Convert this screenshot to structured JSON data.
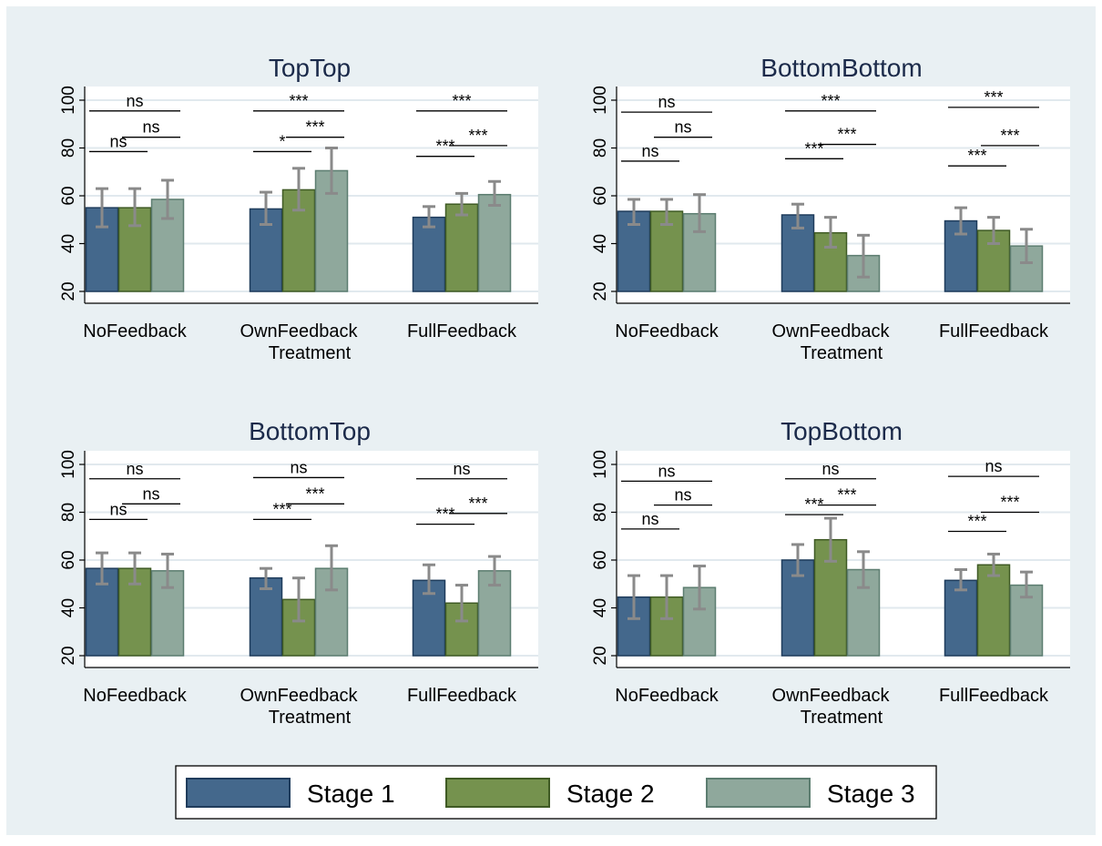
{
  "colors": {
    "outer_background": "#e9f0f3",
    "panel_background": "#ffffff",
    "grid": "#e1e9ee",
    "axis": "#000000",
    "title": "#1b2a4a",
    "error_bar": "#8a8a8a",
    "series": [
      "#44688c",
      "#75924e",
      "#8fa89c"
    ],
    "series_border": [
      "#1f3c5c",
      "#3f5a24",
      "#5c7d70"
    ]
  },
  "legend": {
    "placement": "bottom",
    "items": [
      "Stage 1",
      "Stage 2",
      "Stage 3"
    ]
  },
  "chart_data": [
    {
      "type": "bar",
      "title": "TopTop",
      "xlabel": "Treatment",
      "ylabel": "",
      "ylim": [
        20,
        100
      ],
      "yticks": [
        20,
        40,
        60,
        80,
        100
      ],
      "grid": true,
      "categories": [
        "NoFeedback",
        "OwnFeedback",
        "FullFeedback"
      ],
      "series": [
        {
          "name": "Stage 1",
          "values": [
            55,
            54.5,
            51
          ],
          "ci_low": [
            47,
            48,
            47
          ],
          "ci_high": [
            63,
            61.5,
            55.5
          ]
        },
        {
          "name": "Stage 2",
          "values": [
            55,
            62.5,
            56.5
          ],
          "ci_low": [
            47.5,
            54,
            52
          ],
          "ci_high": [
            63,
            71.5,
            61
          ]
        },
        {
          "name": "Stage 3",
          "values": [
            58.5,
            70.5,
            60.5
          ],
          "ci_low": [
            50.5,
            61,
            56
          ],
          "ci_high": [
            66.5,
            80,
            66
          ]
        }
      ],
      "annotations": [
        {
          "category": 0,
          "from": 0,
          "to": 1,
          "y": 78.5,
          "label": "ns"
        },
        {
          "category": 0,
          "from": 1,
          "to": 2,
          "y": 84.5,
          "label": "ns"
        },
        {
          "category": 0,
          "from": 0,
          "to": 2,
          "y": 95.5,
          "label": "ns"
        },
        {
          "category": 1,
          "from": 0,
          "to": 1,
          "y": 78.5,
          "label": "*"
        },
        {
          "category": 1,
          "from": 1,
          "to": 2,
          "y": 84.5,
          "label": "***"
        },
        {
          "category": 1,
          "from": 0,
          "to": 2,
          "y": 95.5,
          "label": "***"
        },
        {
          "category": 2,
          "from": 0,
          "to": 1,
          "y": 76.5,
          "label": "***"
        },
        {
          "category": 2,
          "from": 1,
          "to": 2,
          "y": 81,
          "label": "***"
        },
        {
          "category": 2,
          "from": 0,
          "to": 2,
          "y": 95.5,
          "label": "***"
        }
      ]
    },
    {
      "type": "bar",
      "title": "BottomBottom",
      "xlabel": "Treatment",
      "ylabel": "",
      "ylim": [
        20,
        100
      ],
      "yticks": [
        20,
        40,
        60,
        80,
        100
      ],
      "grid": true,
      "categories": [
        "NoFeedback",
        "OwnFeedback",
        "FullFeedback"
      ],
      "series": [
        {
          "name": "Stage 1",
          "values": [
            53.5,
            52,
            49.5
          ],
          "ci_low": [
            48,
            46.5,
            44
          ],
          "ci_high": [
            58.5,
            56.5,
            55
          ]
        },
        {
          "name": "Stage 2",
          "values": [
            53.5,
            44.5,
            45.5
          ],
          "ci_low": [
            48,
            38.5,
            40
          ],
          "ci_high": [
            58.5,
            51,
            51
          ]
        },
        {
          "name": "Stage 3",
          "values": [
            52.5,
            35,
            39
          ],
          "ci_low": [
            45,
            26,
            32
          ],
          "ci_high": [
            60.5,
            43.5,
            46
          ]
        }
      ],
      "annotations": [
        {
          "category": 0,
          "from": 0,
          "to": 1,
          "y": 74.5,
          "label": "ns"
        },
        {
          "category": 0,
          "from": 1,
          "to": 2,
          "y": 84.5,
          "label": "ns"
        },
        {
          "category": 0,
          "from": 0,
          "to": 2,
          "y": 95,
          "label": "ns"
        },
        {
          "category": 1,
          "from": 0,
          "to": 1,
          "y": 75.5,
          "label": "***"
        },
        {
          "category": 1,
          "from": 1,
          "to": 2,
          "y": 81.5,
          "label": "***"
        },
        {
          "category": 1,
          "from": 0,
          "to": 2,
          "y": 95.5,
          "label": "***"
        },
        {
          "category": 2,
          "from": 0,
          "to": 1,
          "y": 72.5,
          "label": "***"
        },
        {
          "category": 2,
          "from": 1,
          "to": 2,
          "y": 81,
          "label": "***"
        },
        {
          "category": 2,
          "from": 0,
          "to": 2,
          "y": 97,
          "label": "***"
        }
      ]
    },
    {
      "type": "bar",
      "title": "BottomTop",
      "xlabel": "Treatment",
      "ylabel": "",
      "ylim": [
        20,
        100
      ],
      "yticks": [
        20,
        40,
        60,
        80,
        100
      ],
      "grid": true,
      "categories": [
        "NoFeedback",
        "OwnFeedback",
        "FullFeedback"
      ],
      "series": [
        {
          "name": "Stage 1",
          "values": [
            56.5,
            52.5,
            51.5
          ],
          "ci_low": [
            50,
            48,
            46
          ],
          "ci_high": [
            63,
            56.5,
            58
          ]
        },
        {
          "name": "Stage 2",
          "values": [
            56.5,
            43.5,
            42
          ],
          "ci_low": [
            50,
            34.5,
            34.5
          ],
          "ci_high": [
            63,
            52.5,
            49.5
          ]
        },
        {
          "name": "Stage 3",
          "values": [
            55.5,
            56.5,
            55.5
          ],
          "ci_low": [
            48.5,
            47.5,
            49.5
          ],
          "ci_high": [
            62.5,
            66,
            61.5
          ]
        }
      ],
      "annotations": [
        {
          "category": 0,
          "from": 0,
          "to": 1,
          "y": 77,
          "label": "ns"
        },
        {
          "category": 0,
          "from": 1,
          "to": 2,
          "y": 83.5,
          "label": "ns"
        },
        {
          "category": 0,
          "from": 0,
          "to": 2,
          "y": 94,
          "label": "ns"
        },
        {
          "category": 1,
          "from": 0,
          "to": 1,
          "y": 77,
          "label": "***"
        },
        {
          "category": 1,
          "from": 1,
          "to": 2,
          "y": 83.5,
          "label": "***"
        },
        {
          "category": 1,
          "from": 0,
          "to": 2,
          "y": 94.5,
          "label": "ns"
        },
        {
          "category": 2,
          "from": 0,
          "to": 1,
          "y": 75,
          "label": "***"
        },
        {
          "category": 2,
          "from": 1,
          "to": 2,
          "y": 79.5,
          "label": "***"
        },
        {
          "category": 2,
          "from": 0,
          "to": 2,
          "y": 94,
          "label": "ns"
        }
      ]
    },
    {
      "type": "bar",
      "title": "TopBottom",
      "xlabel": "Treatment",
      "ylabel": "",
      "ylim": [
        20,
        100
      ],
      "yticks": [
        20,
        40,
        60,
        80,
        100
      ],
      "grid": true,
      "categories": [
        "NoFeedback",
        "OwnFeedback",
        "FullFeedback"
      ],
      "series": [
        {
          "name": "Stage 1",
          "values": [
            44.5,
            60,
            51.5
          ],
          "ci_low": [
            35.5,
            53.5,
            47.5
          ],
          "ci_high": [
            53.5,
            66.5,
            56
          ]
        },
        {
          "name": "Stage 2",
          "values": [
            44.5,
            68.5,
            58
          ],
          "ci_low": [
            35.5,
            59.5,
            53.5
          ],
          "ci_high": [
            53.5,
            77.5,
            62.5
          ]
        },
        {
          "name": "Stage 3",
          "values": [
            48.5,
            56,
            49.5
          ],
          "ci_low": [
            39.5,
            48.5,
            44.5
          ],
          "ci_high": [
            57.5,
            63.5,
            55
          ]
        }
      ],
      "annotations": [
        {
          "category": 0,
          "from": 0,
          "to": 1,
          "y": 73,
          "label": "ns"
        },
        {
          "category": 0,
          "from": 1,
          "to": 2,
          "y": 83,
          "label": "ns"
        },
        {
          "category": 0,
          "from": 0,
          "to": 2,
          "y": 93,
          "label": "ns"
        },
        {
          "category": 1,
          "from": 0,
          "to": 1,
          "y": 79,
          "label": "***"
        },
        {
          "category": 1,
          "from": 1,
          "to": 2,
          "y": 83,
          "label": "***"
        },
        {
          "category": 1,
          "from": 0,
          "to": 2,
          "y": 94,
          "label": "ns"
        },
        {
          "category": 2,
          "from": 0,
          "to": 1,
          "y": 72,
          "label": "***"
        },
        {
          "category": 2,
          "from": 1,
          "to": 2,
          "y": 80,
          "label": "***"
        },
        {
          "category": 2,
          "from": 0,
          "to": 2,
          "y": 95,
          "label": "ns"
        }
      ]
    }
  ]
}
